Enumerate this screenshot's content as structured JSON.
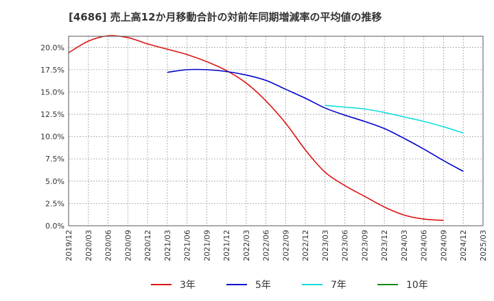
{
  "chart_data": {
    "type": "line",
    "title": "[4686]  売上高12か月移動合計の対前年同期増減率の平均値の推移",
    "x": [
      "2019/12",
      "2020/03",
      "2020/06",
      "2020/09",
      "2020/12",
      "2021/03",
      "2021/06",
      "2021/09",
      "2021/12",
      "2022/03",
      "2022/06",
      "2022/09",
      "2022/12",
      "2023/03",
      "2023/06",
      "2023/09",
      "2023/12",
      "2024/03",
      "2024/06",
      "2024/09",
      "2024/12",
      "2025/03"
    ],
    "ylim": [
      0,
      21.25
    ],
    "yticks": [
      "0.0%",
      "2.5%",
      "5.0%",
      "7.5%",
      "10.0%",
      "12.5%",
      "15.0%",
      "17.5%",
      "20.0%"
    ],
    "ytick_values": [
      0,
      2.5,
      5,
      7.5,
      10,
      12.5,
      15,
      17.5,
      20
    ],
    "grid": true,
    "legend_position": "bottom",
    "series": [
      {
        "name": "3年",
        "color": "#dd1111",
        "values": [
          19.4,
          20.7,
          21.3,
          21.1,
          20.4,
          19.8,
          19.2,
          18.4,
          17.4,
          16.0,
          14.0,
          11.5,
          8.5,
          6.0,
          4.5,
          3.3,
          2.1,
          1.2,
          0.75,
          0.6,
          null,
          null
        ]
      },
      {
        "name": "5年",
        "color": "#0000cc",
        "values": [
          null,
          null,
          null,
          null,
          null,
          17.2,
          17.5,
          17.5,
          17.3,
          16.9,
          16.3,
          15.3,
          14.3,
          13.2,
          12.4,
          11.7,
          10.9,
          9.8,
          8.6,
          7.3,
          6.1,
          null
        ]
      },
      {
        "name": "7年",
        "color": "#11dddd",
        "values": [
          null,
          null,
          null,
          null,
          null,
          null,
          null,
          null,
          null,
          null,
          null,
          null,
          null,
          13.5,
          13.3,
          13.1,
          12.7,
          12.2,
          11.7,
          11.1,
          10.4,
          null
        ]
      },
      {
        "name": "10年",
        "color": "#118811",
        "values": [
          null,
          null,
          null,
          null,
          null,
          null,
          null,
          null,
          null,
          null,
          null,
          null,
          null,
          null,
          null,
          null,
          null,
          null,
          null,
          null,
          null,
          null
        ]
      }
    ]
  }
}
